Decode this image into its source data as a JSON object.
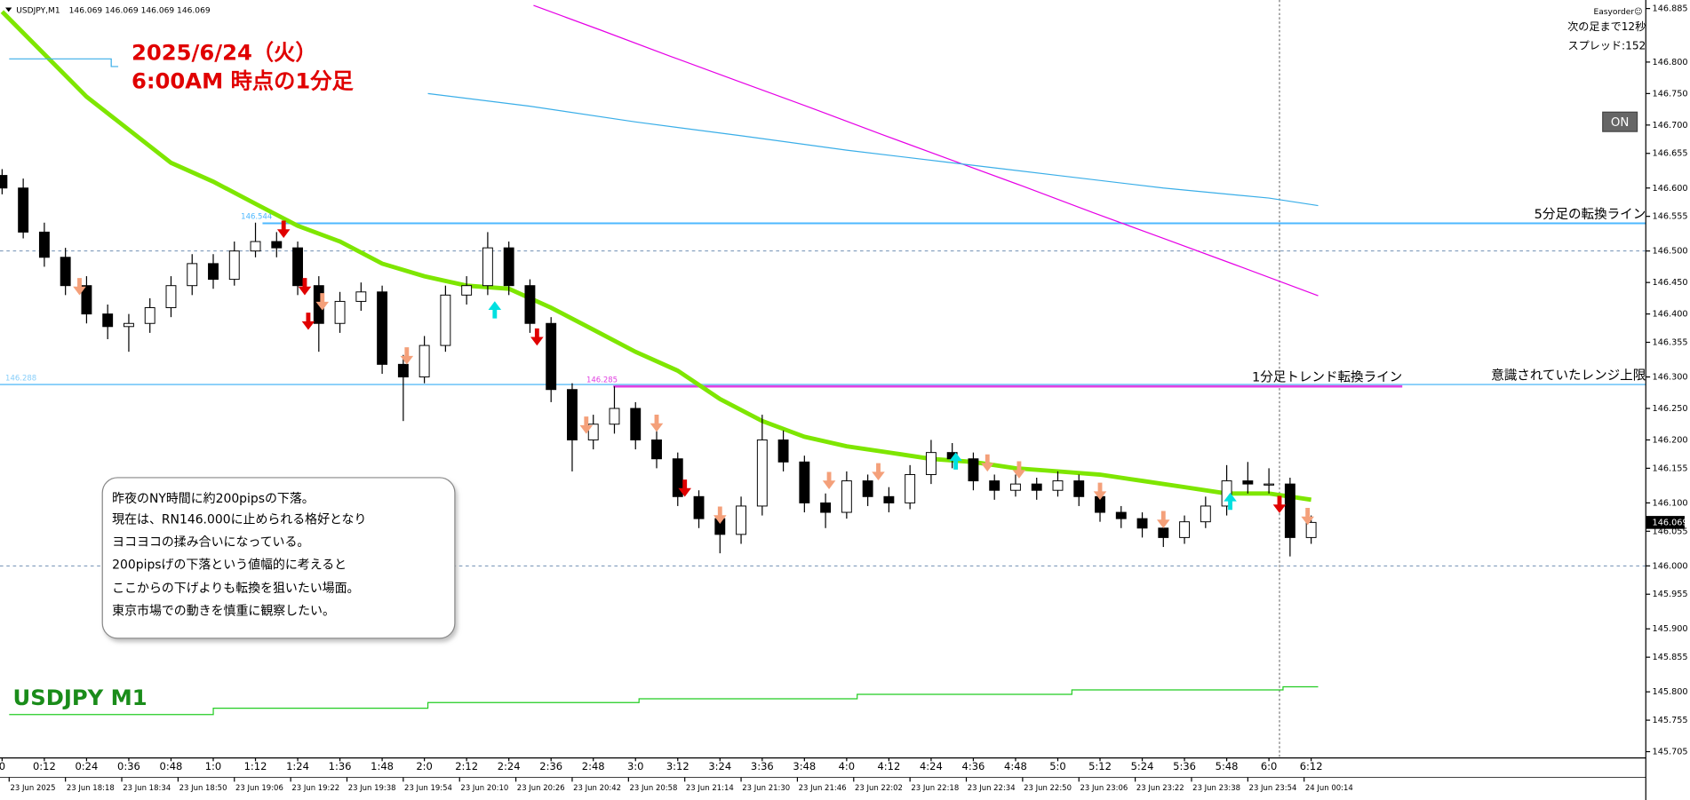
{
  "chart_data": {
    "type": "candlestick",
    "title": "USDJPY,M1",
    "ohlc_header": "146.069 146.069 146.069 146.069",
    "x": [
      0,
      6,
      12,
      18,
      24,
      30,
      36,
      42,
      48,
      54,
      60,
      66,
      72,
      78,
      84,
      90,
      96,
      102,
      108,
      114,
      120,
      126,
      132,
      138,
      144,
      150,
      156,
      162,
      168,
      174,
      180,
      186,
      192,
      198,
      204,
      210,
      216,
      222,
      228,
      234,
      240,
      246,
      252,
      258,
      264,
      270,
      276,
      282,
      288,
      294,
      300,
      306,
      312,
      318,
      324,
      330,
      336,
      342,
      348,
      354,
      360,
      366,
      372
    ],
    "open": [
      146.62,
      146.6,
      146.53,
      146.49,
      146.445,
      146.4,
      146.38,
      146.385,
      146.41,
      146.445,
      146.48,
      146.455,
      146.5,
      146.515,
      146.505,
      146.445,
      146.385,
      146.42,
      146.435,
      146.32,
      146.3,
      146.35,
      146.43,
      146.445,
      146.505,
      146.445,
      146.385,
      146.28,
      146.2,
      146.225,
      146.25,
      146.2,
      146.17,
      146.11,
      146.075,
      146.05,
      146.095,
      146.2,
      146.165,
      146.1,
      146.085,
      146.135,
      146.11,
      146.1,
      146.145,
      146.18,
      146.17,
      146.135,
      146.12,
      146.13,
      146.12,
      146.135,
      146.11,
      146.085,
      146.075,
      146.06,
      146.045,
      146.07,
      146.095,
      146.135,
      146.13,
      146.13,
      146.045
    ],
    "high": [
      146.63,
      146.615,
      146.545,
      146.505,
      146.46,
      146.415,
      146.4,
      146.425,
      146.46,
      146.495,
      146.495,
      146.515,
      146.545,
      146.53,
      146.515,
      146.46,
      146.435,
      146.45,
      146.445,
      146.335,
      146.365,
      146.445,
      146.46,
      146.53,
      146.515,
      146.455,
      146.395,
      146.29,
      146.24,
      146.285,
      146.26,
      146.215,
      146.18,
      146.12,
      146.09,
      146.11,
      146.24,
      146.215,
      146.175,
      146.115,
      146.15,
      146.145,
      146.125,
      146.16,
      146.2,
      146.195,
      146.18,
      146.145,
      146.145,
      146.14,
      146.15,
      146.145,
      146.12,
      146.095,
      146.085,
      146.07,
      146.08,
      146.11,
      146.16,
      146.165,
      146.155,
      146.14,
      146.08
    ],
    "low": [
      146.59,
      146.52,
      146.475,
      146.43,
      146.385,
      146.36,
      146.34,
      146.37,
      146.395,
      146.43,
      146.44,
      146.445,
      146.49,
      146.49,
      146.43,
      146.34,
      146.37,
      146.405,
      146.305,
      146.23,
      146.29,
      146.34,
      146.415,
      146.43,
      146.43,
      146.37,
      146.26,
      146.15,
      146.185,
      146.21,
      146.185,
      146.155,
      146.095,
      146.06,
      146.02,
      146.035,
      146.08,
      146.15,
      146.085,
      146.06,
      146.075,
      146.095,
      146.085,
      146.09,
      146.13,
      146.155,
      146.12,
      146.105,
      146.11,
      146.105,
      146.11,
      146.095,
      146.07,
      146.06,
      146.045,
      146.03,
      146.035,
      146.06,
      146.08,
      146.115,
      146.115,
      146.015,
      146.035
    ],
    "close": [
      146.6,
      146.53,
      146.49,
      146.445,
      146.4,
      146.38,
      146.385,
      146.41,
      146.445,
      146.48,
      146.455,
      146.5,
      146.515,
      146.505,
      146.445,
      146.385,
      146.42,
      146.435,
      146.32,
      146.3,
      146.35,
      146.43,
      146.445,
      146.505,
      146.445,
      146.385,
      146.28,
      146.2,
      146.225,
      146.25,
      146.2,
      146.17,
      146.11,
      146.075,
      146.05,
      146.095,
      146.2,
      146.165,
      146.1,
      146.085,
      146.135,
      146.11,
      146.1,
      146.145,
      146.18,
      146.17,
      146.135,
      146.12,
      146.13,
      146.12,
      146.135,
      146.11,
      146.085,
      146.075,
      146.06,
      146.045,
      146.07,
      146.095,
      146.135,
      146.13,
      146.13,
      146.045,
      146.069
    ],
    "last_price": 146.069,
    "xlim": [
      -0.6,
      467.1
    ],
    "ylim": [
      145.695,
      146.89
    ],
    "yticks": [
      {
        "value": 146.885,
        "label": "146.885"
      },
      {
        "value": 146.8,
        "label": "146.800"
      },
      {
        "value": 146.75,
        "label": "146.750"
      },
      {
        "value": 146.7,
        "label": "146.700"
      },
      {
        "value": 146.655,
        "label": "146.655"
      },
      {
        "value": 146.6,
        "label": "146.600"
      },
      {
        "value": 146.555,
        "label": "146.555"
      },
      {
        "value": 146.5,
        "label": "146.500"
      },
      {
        "value": 146.45,
        "label": "146.450"
      },
      {
        "value": 146.4,
        "label": "146.400"
      },
      {
        "value": 146.355,
        "label": "146.355"
      },
      {
        "value": 146.3,
        "label": "146.300"
      },
      {
        "value": 146.25,
        "label": "146.250"
      },
      {
        "value": 146.2,
        "label": "146.200"
      },
      {
        "value": 146.155,
        "label": "146.155"
      },
      {
        "value": 146.1,
        "label": "146.100"
      },
      {
        "value": 146.055,
        "label": "146.055"
      },
      {
        "value": 146,
        "label": "146.000"
      },
      {
        "value": 145.955,
        "label": "145.955"
      },
      {
        "value": 145.9,
        "label": "145.900"
      },
      {
        "value": 145.855,
        "label": "145.855"
      },
      {
        "value": 145.8,
        "label": "145.800"
      },
      {
        "value": 145.755,
        "label": "145.755"
      },
      {
        "value": 145.705,
        "label": "145.705"
      }
    ],
    "xticks": [
      0,
      {
        "value": 12,
        "label": "0:12"
      },
      {
        "value": 24,
        "label": "0:24"
      },
      {
        "value": 36,
        "label": "0:36"
      },
      {
        "value": 48,
        "label": "0:48"
      },
      {
        "value": 60,
        "label": "1:0"
      },
      {
        "value": 72,
        "label": "1:12"
      },
      {
        "value": 84,
        "label": "1:24"
      },
      {
        "value": 96,
        "label": "1:36"
      },
      {
        "value": 108,
        "label": "1:48"
      },
      {
        "value": 120,
        "label": "2:0"
      },
      {
        "value": 132,
        "label": "2:12"
      },
      {
        "value": 144,
        "label": "2:24"
      },
      {
        "value": 156,
        "label": "2:36"
      },
      {
        "value": 168,
        "label": "2:48"
      },
      {
        "value": 180,
        "label": "3:0"
      },
      {
        "value": 192,
        "label": "3:12"
      },
      {
        "value": 204,
        "label": "3:24"
      },
      {
        "value": 216,
        "label": "3:36"
      },
      {
        "value": 228,
        "label": "3:48"
      },
      {
        "value": 240,
        "label": "4:0"
      },
      {
        "value": 252,
        "label": "4:12"
      },
      {
        "value": 264,
        "label": "4:24"
      },
      {
        "value": 276,
        "label": "4:36"
      },
      {
        "value": 288,
        "label": "4:48"
      },
      {
        "value": 300,
        "label": "5:0"
      },
      {
        "value": 312,
        "label": "5:12"
      },
      {
        "value": 324,
        "label": "5:24"
      },
      {
        "value": 336,
        "label": "5:36"
      },
      {
        "value": 348,
        "label": "5:48"
      },
      {
        "value": 360,
        "label": "6:0"
      },
      {
        "value": 372,
        "label": "6:12"
      }
    ],
    "xticks_date": [
      {
        "value": 2,
        "label": "23 Jun 2025"
      },
      {
        "value": 18,
        "label": "23 Jun 18:18"
      },
      {
        "value": 34,
        "label": "23 Jun 18:34"
      },
      {
        "value": 50,
        "label": "23 Jun 18:50"
      },
      {
        "value": 66,
        "label": "23 Jun 19:06"
      },
      {
        "value": 82,
        "label": "23 Jun 19:22"
      },
      {
        "value": 98,
        "label": "23 Jun 19:38"
      },
      {
        "value": 114,
        "label": "23 Jun 19:54"
      },
      {
        "value": 130,
        "label": "23 Jun 20:10"
      },
      {
        "value": 146,
        "label": "23 Jun 20:26"
      },
      {
        "value": 162,
        "label": "23 Jun 20:42"
      },
      {
        "value": 178,
        "label": "23 Jun 20:58"
      },
      {
        "value": 194,
        "label": "23 Jun 21:14"
      },
      {
        "value": 210,
        "label": "23 Jun 21:30"
      },
      {
        "value": 226,
        "label": "23 Jun 21:46"
      },
      {
        "value": 242,
        "label": "23 Jun 22:02"
      },
      {
        "value": 258,
        "label": "23 Jun 22:18"
      },
      {
        "value": 274,
        "label": "23 Jun 22:34"
      },
      {
        "value": 290,
        "label": "23 Jun 22:50"
      },
      {
        "value": 306,
        "label": "23 Jun 23:06"
      },
      {
        "value": 322,
        "label": "23 Jun 23:22"
      },
      {
        "value": 338,
        "label": "23 Jun 23:38"
      },
      {
        "value": 354,
        "label": "23 Jun 23:54"
      },
      {
        "value": 370,
        "label": "24 Jun 00:14"
      }
    ],
    "lines": [
      {
        "color": "#7ee600",
        "x": [
          0,
          24,
          48,
          60,
          72,
          84,
          96,
          108,
          120,
          132,
          144,
          156,
          168,
          180,
          192,
          204,
          216,
          228,
          240,
          252,
          264,
          276,
          288,
          300,
          312,
          324,
          336,
          348,
          360,
          372
        ],
        "values": [
          146.88,
          146.745,
          146.64,
          146.61,
          146.575,
          146.54,
          146.515,
          146.48,
          146.46,
          146.445,
          146.44,
          146.41,
          146.375,
          146.34,
          146.31,
          146.265,
          146.23,
          146.205,
          146.19,
          146.18,
          146.17,
          146.165,
          146.155,
          146.15,
          146.145,
          146.135,
          146.125,
          146.115,
          146.115,
          146.105
        ]
      },
      {
        "color": "#e600e6",
        "x": [
          151,
          170,
          190,
          210,
          230,
          250,
          270,
          290,
          310,
          330,
          350,
          374
        ],
        "values": [
          146.89,
          146.851,
          146.809,
          146.768,
          146.727,
          146.685,
          146.644,
          146.603,
          146.561,
          146.52,
          146.479,
          146.429
        ]
      },
      {
        "color": "#3aaee8",
        "x": [
          2,
          31,
          31,
          33,
          60,
          121,
          150,
          180,
          210,
          240,
          270,
          300,
          330,
          360,
          374
        ],
        "values": [
          146.805,
          146.805,
          146.793,
          146.793,
          null,
          146.75,
          146.73,
          146.705,
          146.683,
          146.66,
          146.64,
          146.62,
          146.6,
          146.584,
          146.572
        ]
      },
      {
        "color": "#22cc22",
        "x": [
          2,
          60,
          60,
          121,
          121,
          181,
          181,
          243,
          243,
          304,
          304,
          364,
          364,
          374
        ],
        "values": [
          145.764,
          145.764,
          145.774,
          145.774,
          145.783,
          145.783,
          145.789,
          145.789,
          145.796,
          145.796,
          145.803,
          145.803,
          145.808,
          145.808
        ]
      }
    ],
    "levels": [
      {
        "value": 146.544,
        "color": "#4db8ff",
        "from": 74,
        "note": "5分足の転換ライン"
      },
      {
        "value": 146.288,
        "color": "#87cefa",
        "from": -0.6,
        "note": "意識されていたレンジ上限"
      },
      {
        "value": 146.285,
        "color": "#e040e0",
        "from": 173.7,
        "to": 397.9,
        "note": "1分足トレンド転換ライン"
      }
    ],
    "dashed_levels": [
      146.5,
      146
    ],
    "vline_x": 363,
    "signals": [
      {
        "color": "#e00000",
        "direction": "down",
        "x": [
          80,
          86,
          87,
          152,
          194,
          363
        ],
        "values": [
          146.531,
          146.44,
          146.385,
          146.36,
          146.12,
          146.094
        ]
      },
      {
        "color": "#00e0e0",
        "direction": "up",
        "x": [
          140,
          271,
          349
        ],
        "values": [
          146.41,
          146.17,
          146.106
        ]
      },
      {
        "color": "#f4a07a",
        "direction": "down",
        "x": [
          22,
          91,
          115,
          166,
          186,
          204,
          235,
          249,
          280,
          289,
          312,
          330,
          371
        ],
        "values": [
          146.44,
          146.416,
          146.33,
          146.22,
          146.223,
          146.077,
          146.132,
          146.146,
          146.16,
          146.149,
          146.115,
          146.07,
          146.075
        ]
      }
    ]
  },
  "annotations": {
    "headline": [
      "2025/6/24（火）",
      "6:00AM 時点の1分足"
    ],
    "note": [
      "昨夜のNY時間に約200pipsの下落。",
      "現在は、RN146.000に止められる格好となり",
      "ヨコヨコの揉み合いになっている。",
      "200pipsげの下落という値幅的に考えると",
      "ここからの下げよりも転換を狙いたい場面。",
      "東京市場での動きを慎重に観察したい。"
    ],
    "symbol": "USDJPY M1"
  },
  "panel": {
    "easyorder": "Easyorder☺",
    "next_bar": "次の足まで12秒",
    "spread": "スプレッド:152",
    "button": "ON"
  }
}
